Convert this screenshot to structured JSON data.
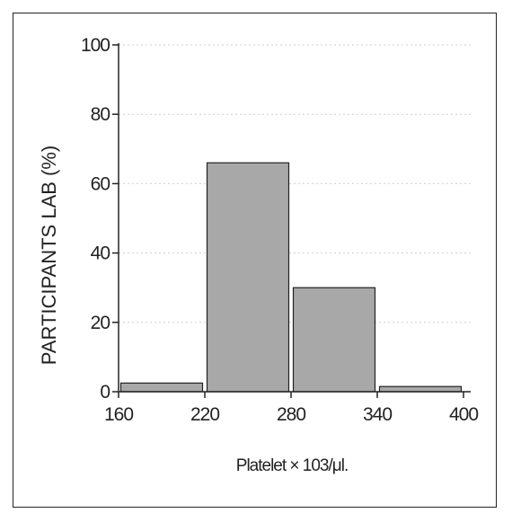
{
  "chart_data": {
    "type": "bar",
    "title": "",
    "xlabel": "Platelet × 103/μl.",
    "ylabel": "PARTICIPANTS LAB (%)",
    "bin_edges": [
      160,
      220,
      280,
      340,
      400
    ],
    "x_ticks": [
      "160",
      "220",
      "280",
      "340",
      "400"
    ],
    "y_ticks": [
      "0",
      "20",
      "40",
      "60",
      "80",
      "100"
    ],
    "values": [
      2.5,
      66,
      30,
      1.5
    ],
    "ylim": [
      0,
      100
    ],
    "xlim": [
      160,
      400
    ],
    "grid": "horizontal dotted",
    "colors": {
      "bar_fill": "#a8a8a8",
      "bar_stroke": "#222222",
      "axis": "#222222",
      "grid": "#cfcfcf"
    }
  }
}
